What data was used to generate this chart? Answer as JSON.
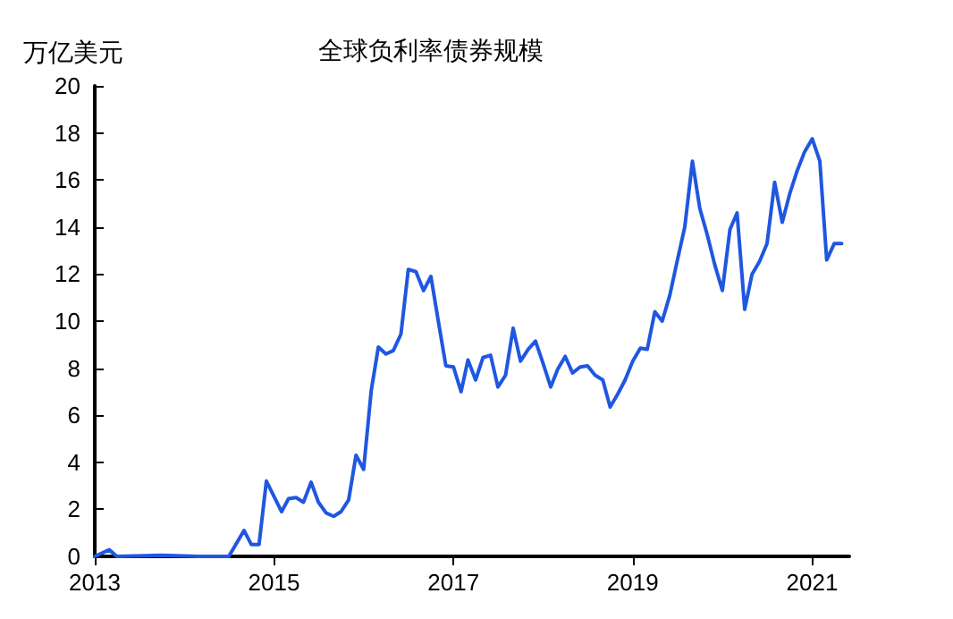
{
  "chart_data": {
    "type": "line",
    "title": "全球负利率债券规模",
    "ylabel": "万亿美元",
    "x": [
      "2013-01",
      "2013-03",
      "2013-04",
      "2013-10",
      "2014-03",
      "2014-07",
      "2014-09",
      "2014-10",
      "2014-11",
      "2014-12",
      "2015-02",
      "2015-03",
      "2015-04",
      "2015-05",
      "2015-06",
      "2015-07",
      "2015-08",
      "2015-09",
      "2015-10",
      "2015-11",
      "2015-12",
      "2016-01",
      "2016-02",
      "2016-03",
      "2016-04",
      "2016-05",
      "2016-06",
      "2016-07",
      "2016-08",
      "2016-09",
      "2016-10",
      "2016-11",
      "2016-12",
      "2017-01",
      "2017-02",
      "2017-03",
      "2017-04",
      "2017-05",
      "2017-06",
      "2017-07",
      "2017-08",
      "2017-09",
      "2017-10",
      "2017-11",
      "2017-12",
      "2018-01",
      "2018-02",
      "2018-03",
      "2018-04",
      "2018-05",
      "2018-06",
      "2018-07",
      "2018-08",
      "2018-09",
      "2018-10",
      "2018-11",
      "2018-12",
      "2019-01",
      "2019-02",
      "2019-03",
      "2019-04",
      "2019-05",
      "2019-06",
      "2019-07",
      "2019-08",
      "2019-09",
      "2019-10",
      "2019-11",
      "2019-12",
      "2020-01",
      "2020-02",
      "2020-03",
      "2020-04",
      "2020-05",
      "2020-06",
      "2020-07",
      "2020-08",
      "2020-09",
      "2020-10",
      "2020-11",
      "2020-12",
      "2021-01",
      "2021-02",
      "2021-03",
      "2021-04",
      "2021-05"
    ],
    "series": [
      {
        "color": "#1f57e0",
        "values": [
          0,
          0.28,
          0,
          0.05,
          0,
          0,
          1.1,
          0.5,
          0.5,
          3.2,
          1.9,
          2.45,
          2.5,
          2.3,
          3.15,
          2.3,
          1.85,
          1.7,
          1.9,
          2.4,
          4.3,
          3.7,
          7.05,
          8.9,
          8.6,
          8.75,
          9.45,
          12.2,
          12.1,
          11.3,
          11.9,
          9.95,
          8.1,
          8.05,
          7.0,
          8.35,
          7.5,
          8.45,
          8.55,
          7.2,
          7.7,
          9.7,
          8.3,
          8.8,
          9.15,
          8.2,
          7.2,
          7.95,
          8.5,
          7.8,
          8.05,
          8.1,
          7.7,
          7.5,
          6.35,
          6.9,
          7.5,
          8.3,
          8.85,
          8.8,
          10.4,
          10.0,
          11.1,
          12.55,
          14.0,
          16.8,
          14.8,
          13.65,
          12.4,
          11.3,
          13.9,
          14.6,
          10.5,
          12.0,
          12.55,
          13.3,
          15.9,
          14.2,
          15.4,
          16.4,
          17.2,
          17.75,
          16.8,
          12.6,
          13.3,
          13.3
        ]
      }
    ],
    "xlim": [
      "2013-01",
      "2021-06"
    ],
    "xticks": [
      "2013",
      "2015",
      "2017",
      "2019",
      "2021"
    ],
    "ylim": [
      0,
      20
    ],
    "yticks": [
      0,
      2,
      4,
      6,
      8,
      10,
      12,
      14,
      16,
      18,
      20
    ],
    "grid": false,
    "marker": "none",
    "line_style": "solid"
  }
}
